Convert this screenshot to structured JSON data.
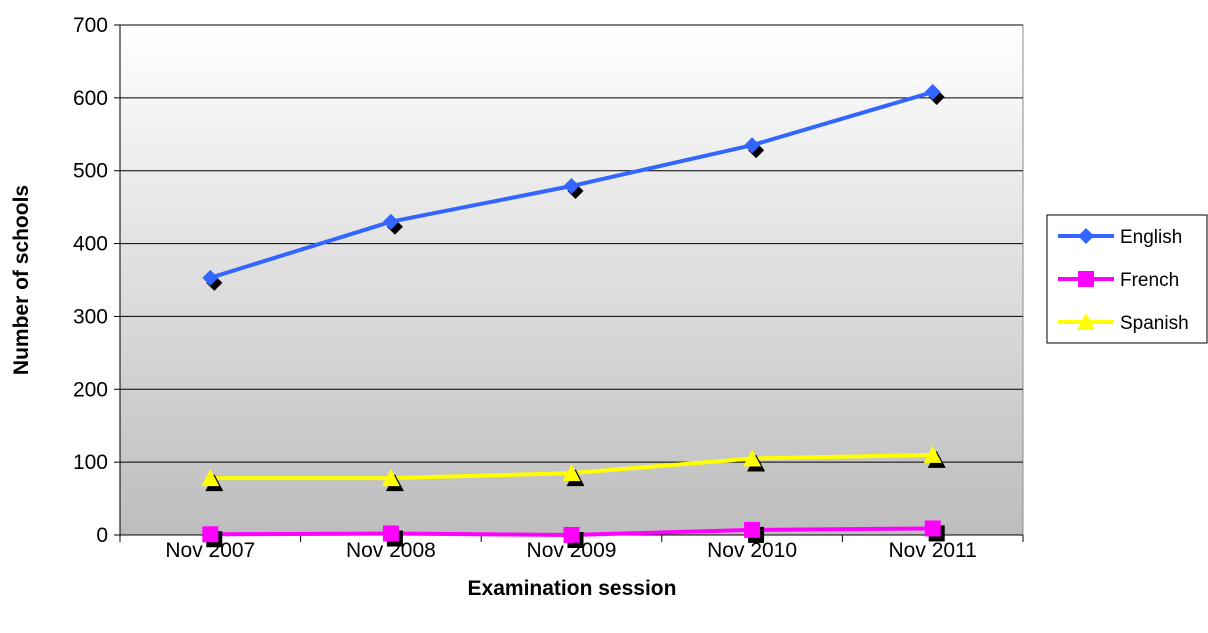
{
  "chart_data": {
    "type": "line",
    "title": "",
    "xlabel": "Examination session",
    "ylabel": "Number of schools",
    "categories": [
      "Nov 2007",
      "Nov 2008",
      "Nov 2009",
      "Nov 2010",
      "Nov 2011"
    ],
    "ylim": [
      0,
      700
    ],
    "yticks": [
      0,
      100,
      200,
      300,
      400,
      500,
      600,
      700
    ],
    "grid": true,
    "legend_position": "right",
    "series": [
      {
        "name": "English",
        "values": [
          353,
          430,
          479,
          535,
          608
        ],
        "color": "#3366ff",
        "marker": "diamond"
      },
      {
        "name": "French",
        "values": [
          1,
          2,
          0,
          7,
          9
        ],
        "color": "#ff00ff",
        "marker": "square"
      },
      {
        "name": "Spanish",
        "values": [
          78,
          78,
          85,
          105,
          110
        ],
        "color": "#ffff00",
        "marker": "triangle"
      }
    ]
  }
}
